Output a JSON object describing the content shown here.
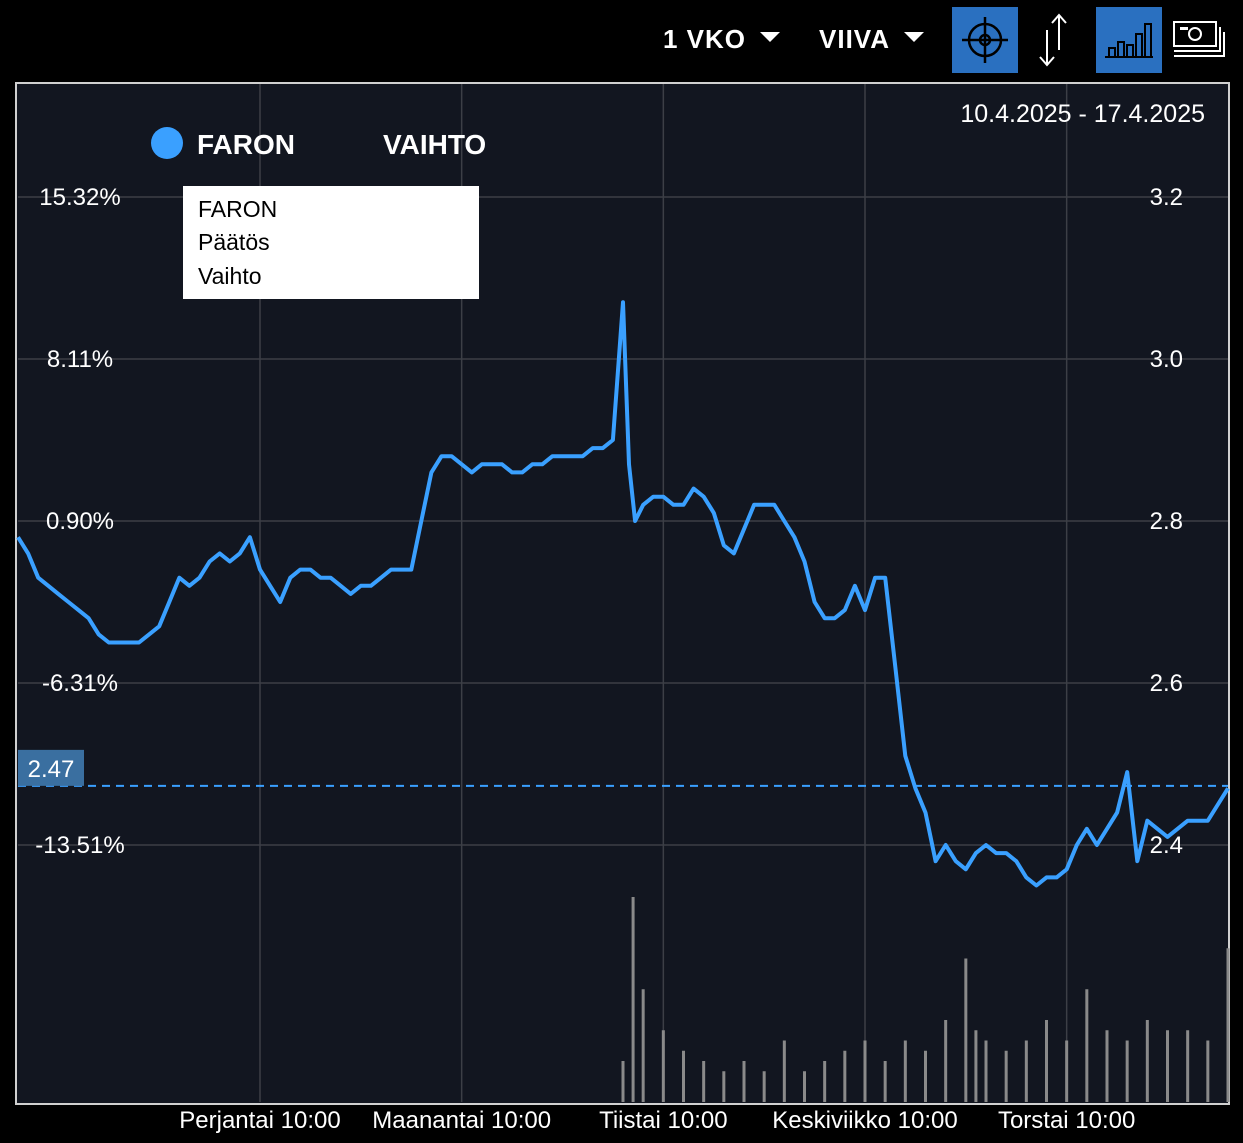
{
  "toolbar": {
    "period_label": "1 VKO",
    "style_label": "VIIVA",
    "buttons": [
      {
        "icon": "crosshair-icon",
        "active": true
      },
      {
        "icon": "vertical-arrows-icon",
        "active": false
      },
      {
        "icon": "volume-bars-icon",
        "active": true
      },
      {
        "icon": "banknotes-icon",
        "active": false
      }
    ]
  },
  "colors": {
    "background": "#000000",
    "plot_background": "#121620",
    "price_line": "#3aa0ff",
    "volume_bars": "#8a8a8a",
    "grid": "#3c3f46",
    "active_button": "#2a70c0",
    "price_marker": "#3a6fa0"
  },
  "chart_data": {
    "type": "line",
    "date_range": "10.4.2025 - 17.4.2025",
    "legend": [
      {
        "name": "FARON",
        "marker": "circle",
        "color": "#3aa0ff"
      },
      {
        "name": "VAIHTO"
      }
    ],
    "tooltip": [
      "FARON",
      "Päätös",
      "Vaihto"
    ],
    "y_left_ticks": [
      "15.32%",
      "8.11%",
      "0.90%",
      "-6.31%",
      "-13.51%"
    ],
    "y_right_ticks": [
      "3.2",
      "3.0",
      "2.8",
      "2.6",
      "2.4"
    ],
    "y_right_values": [
      3.2,
      3.0,
      2.8,
      2.6,
      2.4
    ],
    "ylim": [
      2.3,
      3.34
    ],
    "x_ticks": [
      "Perjantai 10:00",
      "Maanantai 10:00",
      "Tiistai 10:00",
      "Keskiviikko 10:00",
      "Torstai 10:00"
    ],
    "x_tick_positions": [
      1.2,
      2.2,
      3.2,
      4.2,
      5.2
    ],
    "xlim": [
      0,
      6
    ],
    "current_price": "2.47",
    "current_value": 2.473,
    "series": [
      {
        "name": "FARON",
        "x": [
          0.0,
          0.05,
          0.1,
          0.15,
          0.2,
          0.25,
          0.3,
          0.35,
          0.4,
          0.45,
          0.5,
          0.55,
          0.6,
          0.65,
          0.7,
          0.75,
          0.8,
          0.85,
          0.9,
          0.95,
          1.0,
          1.05,
          1.1,
          1.15,
          1.2,
          1.25,
          1.3,
          1.35,
          1.4,
          1.45,
          1.5,
          1.55,
          1.6,
          1.65,
          1.7,
          1.75,
          1.8,
          1.85,
          1.9,
          1.95,
          2.0,
          2.05,
          2.1,
          2.15,
          2.2,
          2.25,
          2.3,
          2.35,
          2.4,
          2.45,
          2.5,
          2.55,
          2.6,
          2.65,
          2.7,
          2.75,
          2.8,
          2.85,
          2.9,
          2.95,
          3.0,
          3.03,
          3.06,
          3.1,
          3.15,
          3.2,
          3.25,
          3.3,
          3.35,
          3.4,
          3.45,
          3.5,
          3.55,
          3.6,
          3.65,
          3.7,
          3.75,
          3.8,
          3.85,
          3.9,
          3.95,
          4.0,
          4.05,
          4.1,
          4.15,
          4.2,
          4.25,
          4.3,
          4.35,
          4.4,
          4.45,
          4.5,
          4.55,
          4.6,
          4.65,
          4.7,
          4.75,
          4.8,
          4.85,
          4.9,
          4.95,
          5.0,
          5.05,
          5.1,
          5.15,
          5.2,
          5.25,
          5.3,
          5.35,
          5.4,
          5.45,
          5.5,
          5.55,
          5.6,
          5.65,
          5.7,
          5.75,
          5.8,
          5.85,
          5.9,
          5.95,
          6.0
        ],
        "values": [
          2.78,
          2.76,
          2.73,
          2.72,
          2.71,
          2.7,
          2.69,
          2.68,
          2.66,
          2.65,
          2.65,
          2.65,
          2.65,
          2.66,
          2.67,
          2.7,
          2.73,
          2.72,
          2.73,
          2.75,
          2.76,
          2.75,
          2.76,
          2.78,
          2.74,
          2.72,
          2.7,
          2.73,
          2.74,
          2.74,
          2.73,
          2.73,
          2.72,
          2.71,
          2.72,
          2.72,
          2.73,
          2.74,
          2.74,
          2.74,
          2.8,
          2.86,
          2.88,
          2.88,
          2.87,
          2.86,
          2.87,
          2.87,
          2.87,
          2.86,
          2.86,
          2.87,
          2.87,
          2.88,
          2.88,
          2.88,
          2.88,
          2.89,
          2.89,
          2.9,
          3.07,
          2.87,
          2.8,
          2.82,
          2.83,
          2.83,
          2.82,
          2.82,
          2.84,
          2.83,
          2.81,
          2.77,
          2.76,
          2.79,
          2.82,
          2.82,
          2.82,
          2.8,
          2.78,
          2.75,
          2.7,
          2.68,
          2.68,
          2.69,
          2.72,
          2.69,
          2.73,
          2.73,
          2.62,
          2.51,
          2.47,
          2.44,
          2.38,
          2.4,
          2.38,
          2.37,
          2.39,
          2.4,
          2.39,
          2.39,
          2.38,
          2.36,
          2.35,
          2.36,
          2.36,
          2.37,
          2.4,
          2.42,
          2.4,
          2.42,
          2.44,
          2.49,
          2.38,
          2.43,
          2.42,
          2.41,
          2.42,
          2.43,
          2.43,
          2.43,
          2.45,
          2.47
        ]
      }
    ],
    "volume": {
      "name": "VAIHTO",
      "x": [
        3.0,
        3.05,
        3.1,
        3.2,
        3.3,
        3.4,
        3.5,
        3.6,
        3.7,
        3.8,
        3.9,
        4.0,
        4.1,
        4.2,
        4.3,
        4.4,
        4.5,
        4.6,
        4.7,
        4.75,
        4.8,
        4.9,
        5.0,
        5.1,
        5.2,
        5.3,
        5.4,
        5.5,
        5.6,
        5.7,
        5.8,
        5.9,
        6.0
      ],
      "values": [
        0.2,
        1.0,
        0.55,
        0.35,
        0.25,
        0.2,
        0.15,
        0.2,
        0.15,
        0.3,
        0.15,
        0.2,
        0.25,
        0.3,
        0.2,
        0.3,
        0.25,
        0.4,
        0.7,
        0.35,
        0.3,
        0.25,
        0.3,
        0.4,
        0.3,
        0.55,
        0.35,
        0.3,
        0.4,
        0.35,
        0.35,
        0.3,
        0.75
      ]
    }
  }
}
